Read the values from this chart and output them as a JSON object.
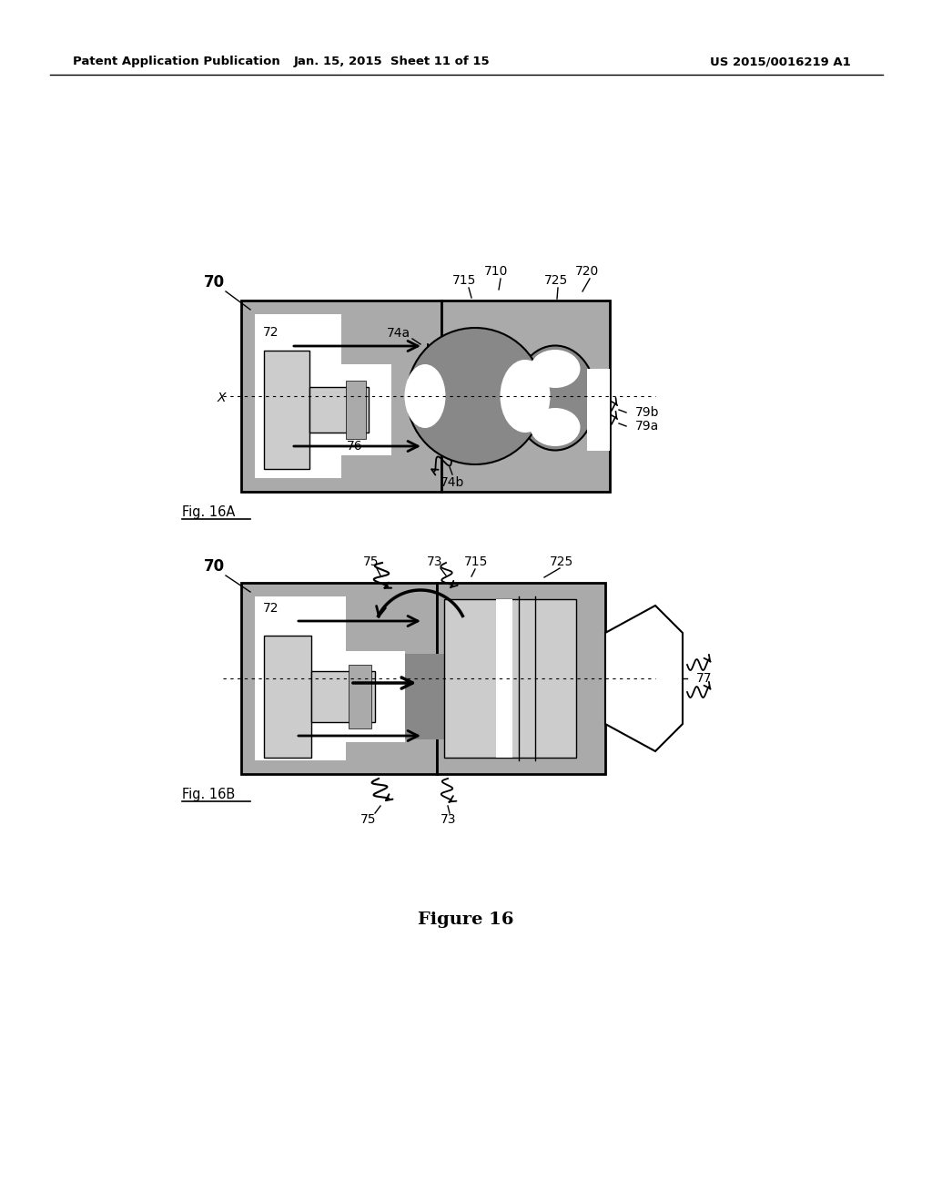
{
  "bg_color": "#ffffff",
  "header_left": "Patent Application Publication",
  "header_mid": "Jan. 15, 2015  Sheet 11 of 15",
  "header_right": "US 2015/0016219 A1",
  "figure_caption": "Figure 16",
  "gray_fill": "#aaaaaa",
  "gray_light": "#cccccc",
  "gray_dark": "#888888",
  "gray_medium": "#bbbbbb",
  "fig16a_label": "Fig. 16A",
  "fig16b_label": "Fig. 16B"
}
